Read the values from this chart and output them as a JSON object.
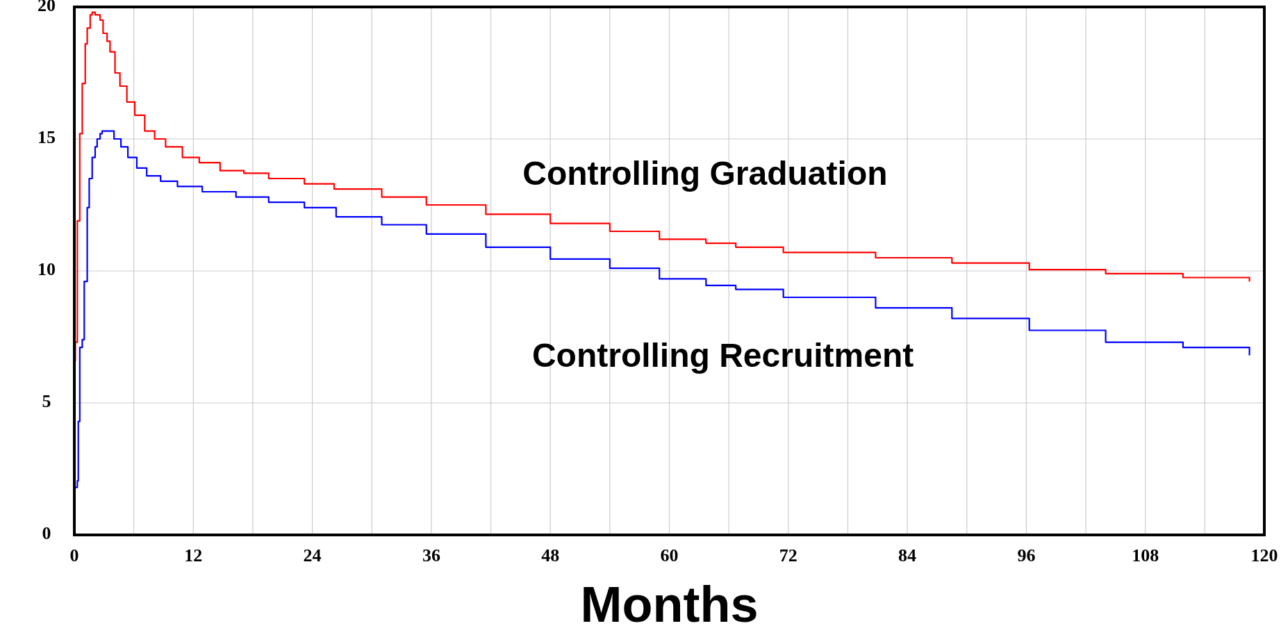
{
  "chart_data": {
    "type": "step",
    "xlabel": "Months",
    "xlim": [
      0,
      120
    ],
    "xticks": [
      0,
      {
        "value": 6,
        "label": null
      },
      12,
      {
        "value": 18,
        "label": null
      },
      24,
      {
        "value": 30,
        "label": null
      },
      36,
      {
        "value": 42,
        "label": null
      },
      48,
      {
        "value": 54,
        "label": null
      },
      60,
      {
        "value": 66,
        "label": null
      },
      72,
      {
        "value": 78,
        "label": null
      },
      84,
      {
        "value": 90,
        "label": null
      },
      96,
      {
        "value": 102,
        "label": null
      },
      108,
      {
        "value": 114,
        "label": null
      },
      120
    ],
    "ylim": [
      0,
      20
    ],
    "yticks": [
      0,
      5,
      10,
      15,
      20
    ],
    "grid": true,
    "series": [
      {
        "name": "Controlling Graduation",
        "color": "#ff0000",
        "x": [
          0.05,
          0.1,
          0.3,
          0.55,
          0.8,
          1.1,
          1.3,
          1.6,
          1.8,
          2.1,
          2.6,
          2.9,
          3.3,
          3.6,
          4.1,
          4.6,
          5.3,
          6.1,
          7.1,
          8.1,
          9.2,
          10.9,
          12.6,
          14.7,
          17.1,
          19.6,
          23.2,
          26.2,
          31,
          35.5,
          41.5,
          48,
          54,
          59,
          63.7,
          66.7,
          71.5,
          74,
          80.8,
          88.5,
          96.3,
          104,
          111.8,
          118.5
        ],
        "values": [
          6.6,
          7.3,
          11.9,
          15.2,
          17.1,
          18.6,
          19.2,
          19.7,
          19.8,
          19.7,
          19.5,
          19,
          18.7,
          18.3,
          17.5,
          17,
          16.4,
          15.9,
          15.3,
          15,
          14.7,
          14.3,
          14.1,
          13.8,
          13.7,
          13.5,
          13.3,
          13.1,
          12.8,
          12.5,
          12.15,
          11.8,
          11.5,
          11.2,
          11.05,
          10.9,
          10.7,
          10.7,
          10.5,
          10.3,
          10.05,
          9.9,
          9.75,
          9.6
        ]
      },
      {
        "name": "Controlling Recruitment",
        "color": "#0000ff",
        "x": [
          0.05,
          0.3,
          0.4,
          0.55,
          0.8,
          1,
          1.3,
          1.5,
          1.8,
          2.1,
          2.3,
          2.6,
          2.8,
          3.4,
          4,
          4.7,
          5.4,
          6.3,
          7.3,
          8.7,
          10.4,
          12.9,
          16.3,
          19.6,
          23.2,
          26.4,
          31,
          35.5,
          41.5,
          48,
          54,
          59,
          63.7,
          66.7,
          71.5,
          74,
          80.8,
          88.5,
          96.3,
          104,
          111.8,
          118.5
        ],
        "values": [
          1.8,
          2.05,
          4.3,
          7.1,
          7.4,
          9.6,
          12.4,
          13.5,
          14.3,
          14.7,
          15,
          15.2,
          15.3,
          15.3,
          15,
          14.7,
          14.3,
          13.9,
          13.6,
          13.4,
          13.2,
          13,
          12.8,
          12.6,
          12.4,
          12.05,
          11.75,
          11.4,
          10.9,
          10.45,
          10.1,
          9.7,
          9.45,
          9.3,
          9,
          9,
          8.6,
          8.2,
          7.75,
          7.3,
          7.1,
          6.8
        ]
      }
    ]
  }
}
